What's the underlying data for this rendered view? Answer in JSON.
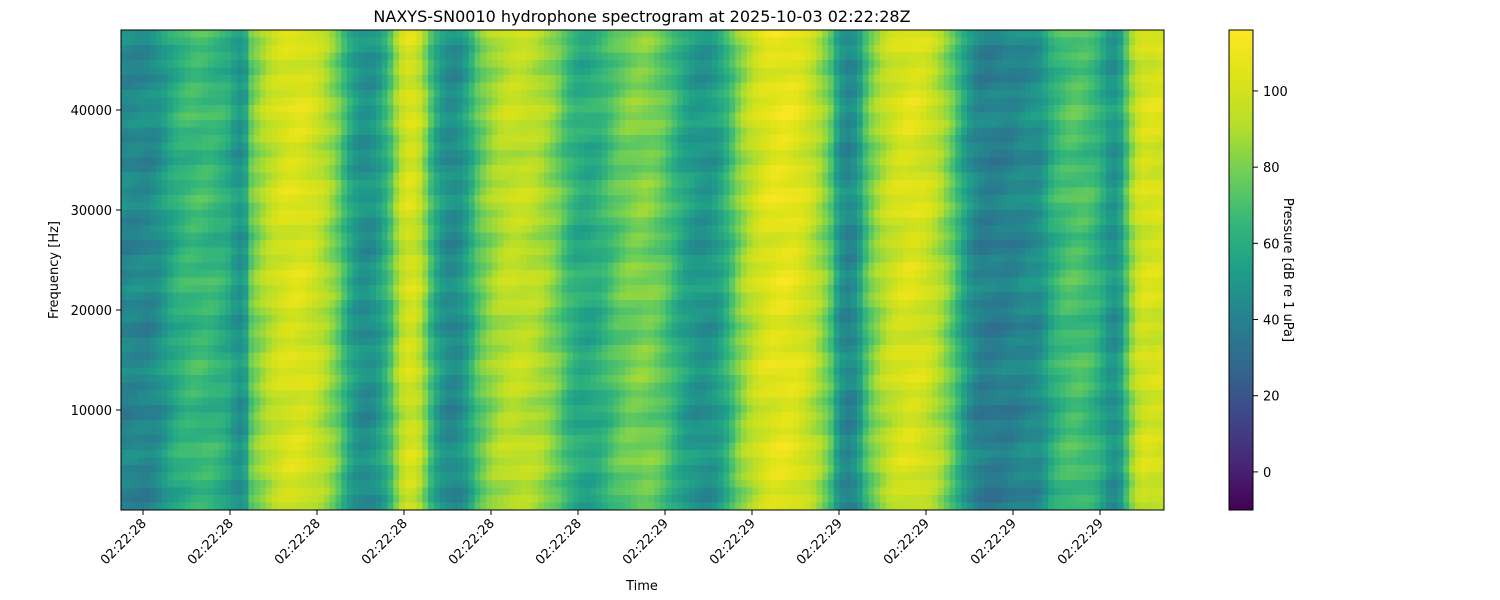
{
  "chart_data": {
    "type": "heatmap",
    "title": "NAXYS-SN0010 hydrophone spectrogram at 2025-10-03 02:22:28Z",
    "xlabel": "Time",
    "ylabel": "Frequency [Hz]",
    "colorbar_label": "Pressure [dB re 1 uPa]",
    "colormap": "viridis",
    "x_tick_labels": [
      "02:22:28",
      "02:22:28",
      "02:22:28",
      "02:22:28",
      "02:22:28",
      "02:22:28",
      "02:22:29",
      "02:22:29",
      "02:22:29",
      "02:22:29",
      "02:22:29",
      "02:22:29"
    ],
    "y_ticks": [
      10000,
      20000,
      30000,
      40000
    ],
    "ylim": [
      0,
      48000
    ],
    "colorbar_ticks": [
      0,
      20,
      40,
      60,
      80,
      100
    ],
    "color_range": [
      -10,
      116
    ],
    "time_bands": [
      {
        "start": 0.0,
        "end": 0.045,
        "level": 44
      },
      {
        "start": 0.045,
        "end": 0.105,
        "level": 68
      },
      {
        "start": 0.105,
        "end": 0.125,
        "level": 50
      },
      {
        "start": 0.125,
        "end": 0.21,
        "level": 104
      },
      {
        "start": 0.21,
        "end": 0.26,
        "level": 48
      },
      {
        "start": 0.26,
        "end": 0.295,
        "level": 102
      },
      {
        "start": 0.295,
        "end": 0.34,
        "level": 46
      },
      {
        "start": 0.34,
        "end": 0.42,
        "level": 96
      },
      {
        "start": 0.42,
        "end": 0.47,
        "level": 60
      },
      {
        "start": 0.47,
        "end": 0.53,
        "level": 82
      },
      {
        "start": 0.53,
        "end": 0.59,
        "level": 50
      },
      {
        "start": 0.59,
        "end": 0.68,
        "level": 108
      },
      {
        "start": 0.68,
        "end": 0.715,
        "level": 44
      },
      {
        "start": 0.715,
        "end": 0.8,
        "level": 104
      },
      {
        "start": 0.8,
        "end": 0.86,
        "level": 40
      },
      {
        "start": 0.86,
        "end": 0.89,
        "level": 46
      },
      {
        "start": 0.89,
        "end": 0.94,
        "level": 72
      },
      {
        "start": 0.94,
        "end": 0.965,
        "level": 50
      },
      {
        "start": 0.965,
        "end": 1.0,
        "level": 102
      }
    ]
  }
}
